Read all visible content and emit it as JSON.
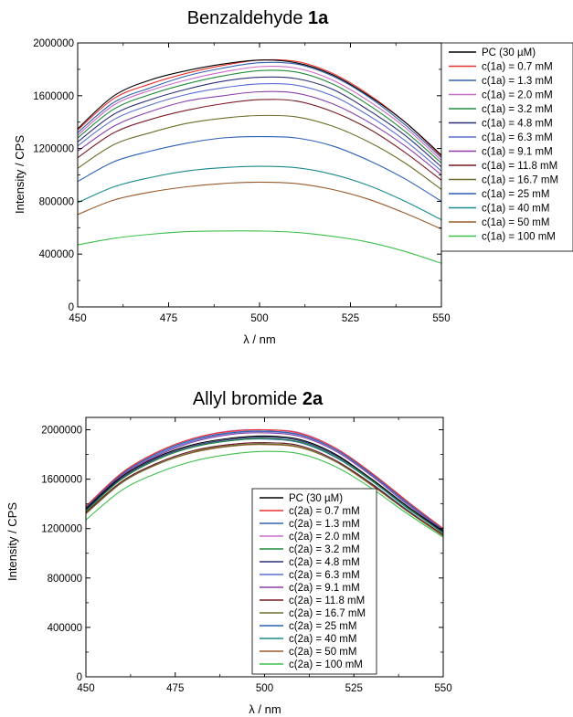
{
  "chart_data": [
    {
      "type": "line",
      "title": "Benzaldehyde ",
      "title_bold": "1a",
      "xlabel": "λ / nm",
      "ylabel": "Intensity / CPS",
      "xlim": [
        450,
        550
      ],
      "ylim": [
        0,
        2000000
      ],
      "xticks": [
        "450",
        "475",
        "500",
        "525",
        "550"
      ],
      "yticks": [
        "0",
        "400000",
        "800000",
        "1200000",
        "1600000",
        "2000000"
      ],
      "legend_position": "right, outside plot",
      "x": [
        450,
        460,
        470,
        480,
        490,
        500,
        510,
        520,
        530,
        540,
        550
      ],
      "series": [
        {
          "name": "PC (30 µM)",
          "color": "#000000",
          "values": [
            1350000,
            1600000,
            1720000,
            1790000,
            1840000,
            1870000,
            1850000,
            1760000,
            1600000,
            1400000,
            1150000
          ]
        },
        {
          "name": "c(1a) = 0.7 mM",
          "color": "#e8322e",
          "values": [
            1340000,
            1580000,
            1690000,
            1770000,
            1830000,
            1870000,
            1860000,
            1770000,
            1610000,
            1400000,
            1140000
          ]
        },
        {
          "name": "c(1a) = 1.3 mM",
          "color": "#3560ae",
          "values": [
            1320000,
            1550000,
            1660000,
            1750000,
            1810000,
            1850000,
            1840000,
            1750000,
            1590000,
            1380000,
            1130000
          ]
        },
        {
          "name": "c(1a) = 2.0 mM",
          "color": "#c76bc9",
          "values": [
            1300000,
            1530000,
            1640000,
            1720000,
            1780000,
            1820000,
            1810000,
            1720000,
            1560000,
            1360000,
            1110000
          ]
        },
        {
          "name": "c(1a) = 3.2 mM",
          "color": "#218a3c",
          "values": [
            1280000,
            1500000,
            1610000,
            1690000,
            1750000,
            1790000,
            1780000,
            1690000,
            1530000,
            1330000,
            1090000
          ]
        },
        {
          "name": "c(1a) = 4.8 mM",
          "color": "#2b2f78",
          "values": [
            1250000,
            1460000,
            1570000,
            1650000,
            1710000,
            1740000,
            1730000,
            1650000,
            1490000,
            1300000,
            1060000
          ]
        },
        {
          "name": "c(1a) = 6.3 mM",
          "color": "#5a6fd0",
          "values": [
            1220000,
            1420000,
            1530000,
            1610000,
            1660000,
            1690000,
            1680000,
            1600000,
            1450000,
            1260000,
            1030000
          ]
        },
        {
          "name": "c(1a) = 9.1 mM",
          "color": "#8a3fa8",
          "values": [
            1180000,
            1370000,
            1480000,
            1560000,
            1600000,
            1630000,
            1620000,
            1540000,
            1400000,
            1220000,
            1000000
          ]
        },
        {
          "name": "c(1a) = 11.8 mM",
          "color": "#7a1a25",
          "values": [
            1130000,
            1320000,
            1420000,
            1490000,
            1540000,
            1570000,
            1560000,
            1480000,
            1350000,
            1170000,
            960000
          ]
        },
        {
          "name": "c(1a) = 16.7 mM",
          "color": "#6e6d2b",
          "values": [
            1050000,
            1230000,
            1320000,
            1390000,
            1430000,
            1450000,
            1440000,
            1370000,
            1250000,
            1090000,
            890000
          ]
        },
        {
          "name": "c(1a) = 25 mM",
          "color": "#2c5fb5",
          "values": [
            950000,
            1100000,
            1180000,
            1240000,
            1280000,
            1290000,
            1280000,
            1220000,
            1110000,
            970000,
            800000
          ]
        },
        {
          "name": "c(1a) = 40 mM",
          "color": "#1a8a8c",
          "values": [
            790000,
            910000,
            980000,
            1030000,
            1055000,
            1065000,
            1055000,
            1005000,
            920000,
            800000,
            660000
          ]
        },
        {
          "name": "c(1a) = 50 mM",
          "color": "#9a5a2c",
          "values": [
            700000,
            810000,
            870000,
            910000,
            935000,
            945000,
            935000,
            890000,
            815000,
            710000,
            590000
          ]
        },
        {
          "name": "c(1a) = 100 mM",
          "color": "#3fbf4e",
          "values": [
            470000,
            520000,
            550000,
            570000,
            575000,
            575000,
            565000,
            535000,
            490000,
            420000,
            330000
          ]
        }
      ]
    },
    {
      "type": "line",
      "title": "Allyl bromide ",
      "title_bold": "2a",
      "xlabel": "λ / nm",
      "ylabel": "Intensity / CPS",
      "xlim": [
        450,
        550
      ],
      "ylim": [
        0,
        2100000
      ],
      "xticks": [
        "450",
        "475",
        "500",
        "525",
        "550"
      ],
      "yticks": [
        "0",
        "400000",
        "800000",
        "1200000",
        "1600000",
        "2000000"
      ],
      "legend_position": "bottom-center, inside plot",
      "x": [
        450,
        460,
        470,
        480,
        490,
        500,
        510,
        520,
        530,
        540,
        550
      ],
      "series": [
        {
          "name": "PC (30 µM)",
          "color": "#000000",
          "values": [
            1360000,
            1620000,
            1780000,
            1880000,
            1930000,
            1950000,
            1920000,
            1800000,
            1600000,
            1380000,
            1180000
          ]
        },
        {
          "name": "c(2a) = 0.7 mM",
          "color": "#e8322e",
          "values": [
            1380000,
            1650000,
            1820000,
            1930000,
            1985000,
            2000000,
            1970000,
            1850000,
            1650000,
            1420000,
            1200000
          ]
        },
        {
          "name": "c(2a) = 1.3 mM",
          "color": "#3560ae",
          "values": [
            1370000,
            1640000,
            1810000,
            1920000,
            1975000,
            1990000,
            1960000,
            1840000,
            1640000,
            1410000,
            1190000
          ]
        },
        {
          "name": "c(2a) = 2.0 mM",
          "color": "#c76bc9",
          "values": [
            1380000,
            1650000,
            1820000,
            1930000,
            1990000,
            2000000,
            1975000,
            1850000,
            1650000,
            1420000,
            1200000
          ]
        },
        {
          "name": "c(2a) = 3.2 mM",
          "color": "#218a3c",
          "values": [
            1340000,
            1600000,
            1760000,
            1860000,
            1910000,
            1930000,
            1900000,
            1780000,
            1590000,
            1370000,
            1160000
          ]
        },
        {
          "name": "c(2a) = 4.8 mM",
          "color": "#2b2f78",
          "values": [
            1350000,
            1610000,
            1770000,
            1870000,
            1920000,
            1940000,
            1910000,
            1790000,
            1600000,
            1380000,
            1170000
          ]
        },
        {
          "name": "c(2a) = 6.3 mM",
          "color": "#5a6fd0",
          "values": [
            1370000,
            1640000,
            1800000,
            1910000,
            1970000,
            1985000,
            1955000,
            1835000,
            1635000,
            1405000,
            1190000
          ]
        },
        {
          "name": "c(2a) = 9.1 mM",
          "color": "#8a3fa8",
          "values": [
            1360000,
            1630000,
            1790000,
            1900000,
            1960000,
            1975000,
            1945000,
            1825000,
            1625000,
            1395000,
            1185000
          ]
        },
        {
          "name": "c(2a) = 11.8 mM",
          "color": "#7a1a25",
          "values": [
            1330000,
            1580000,
            1730000,
            1830000,
            1880000,
            1895000,
            1870000,
            1750000,
            1560000,
            1345000,
            1150000
          ]
        },
        {
          "name": "c(2a) = 16.7 mM",
          "color": "#6e6d2b",
          "values": [
            1320000,
            1570000,
            1720000,
            1820000,
            1870000,
            1885000,
            1860000,
            1740000,
            1555000,
            1340000,
            1145000
          ]
        },
        {
          "name": "c(2a) = 25 mM",
          "color": "#2c5fb5",
          "values": [
            1350000,
            1600000,
            1760000,
            1860000,
            1910000,
            1925000,
            1895000,
            1775000,
            1585000,
            1365000,
            1165000
          ]
        },
        {
          "name": "c(2a) = 40 mM",
          "color": "#1a8a8c",
          "values": [
            1330000,
            1580000,
            1730000,
            1830000,
            1880000,
            1895000,
            1870000,
            1750000,
            1565000,
            1350000,
            1150000
          ]
        },
        {
          "name": "c(2a) = 50 mM",
          "color": "#9a5a2c",
          "values": [
            1320000,
            1570000,
            1720000,
            1815000,
            1865000,
            1880000,
            1855000,
            1740000,
            1550000,
            1340000,
            1140000
          ]
        },
        {
          "name": "c(2a) = 100 mM",
          "color": "#3fbf4e",
          "values": [
            1270000,
            1510000,
            1650000,
            1745000,
            1800000,
            1825000,
            1805000,
            1700000,
            1525000,
            1320000,
            1130000
          ]
        }
      ]
    }
  ]
}
